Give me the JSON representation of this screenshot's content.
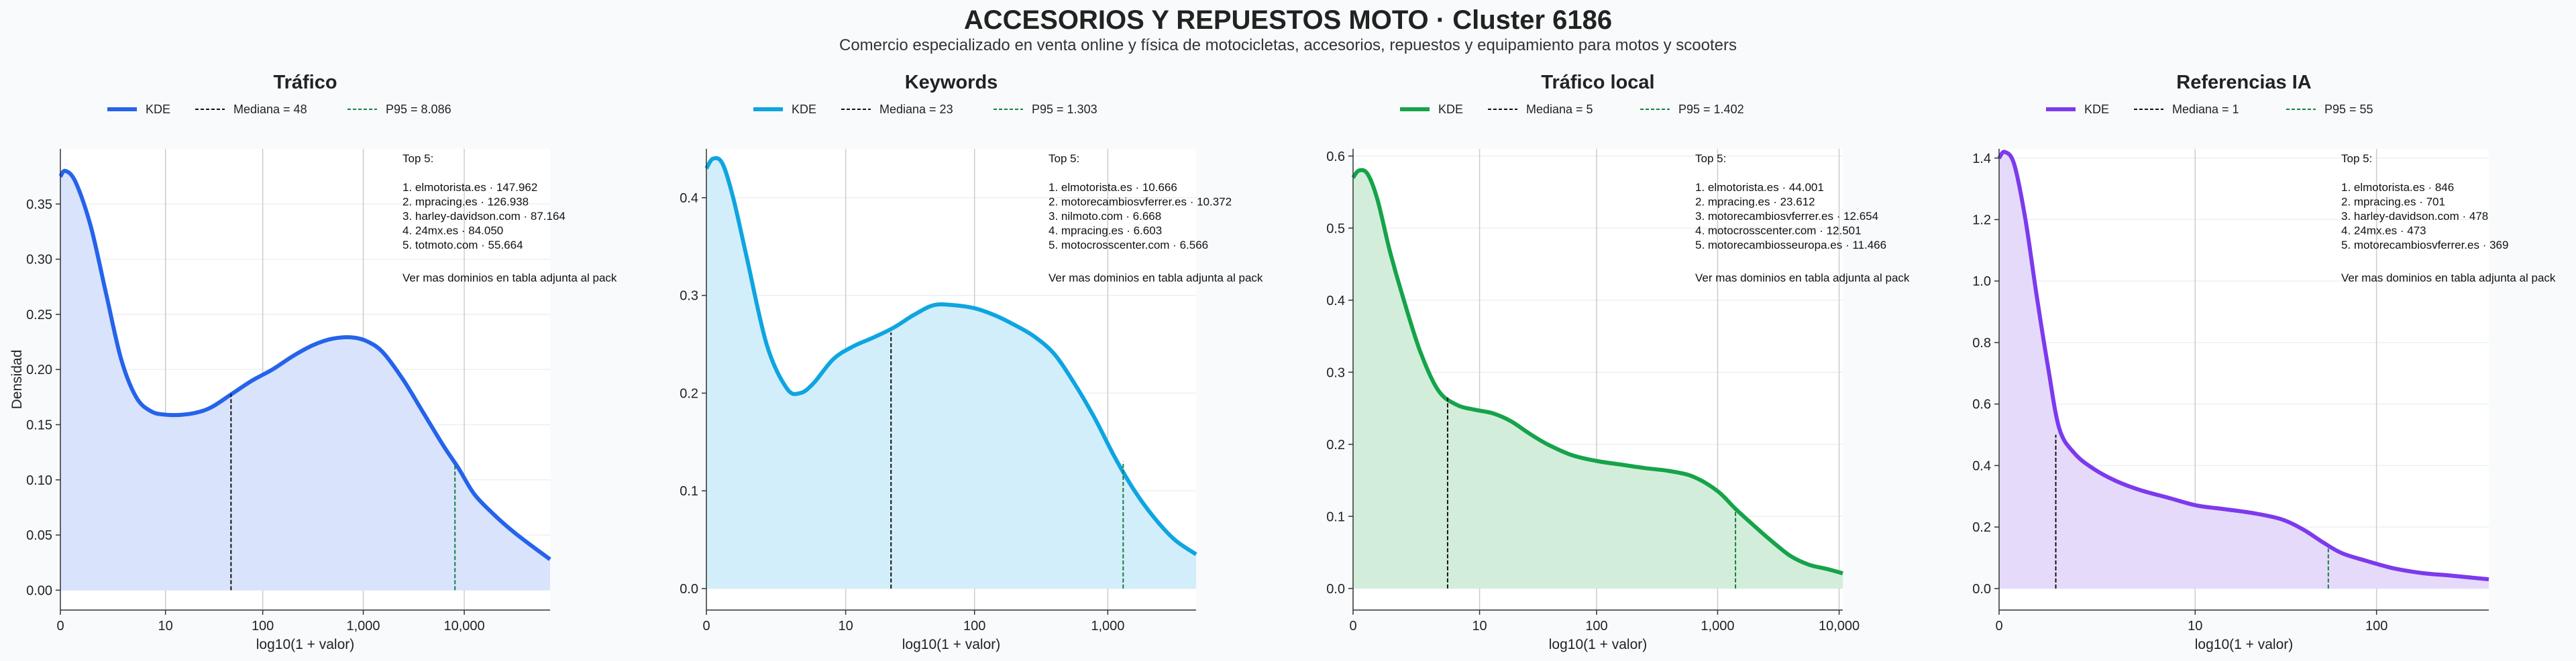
{
  "title": "ACCESORIOS Y REPUESTOS MOTO · Cluster 6186",
  "subtitle": "Comercio especializado en venta online y física de motocicletas, accesorios, repuestos y equipamiento para motos y scooters",
  "chart_data": [
    {
      "type": "area",
      "title": "Tráfico",
      "color": "#2563eb",
      "fill": "#d9e3fb",
      "xlabel": "log10(1 + valor)",
      "ylabel": "Densidad",
      "xlim": [
        0,
        4.85
      ],
      "ylim": [
        -0.018,
        0.4
      ],
      "x_ticks": [
        {
          "v": 0,
          "label": "0"
        },
        {
          "v": 1.041,
          "label": "10"
        },
        {
          "v": 2.004,
          "label": "100"
        },
        {
          "v": 3.0,
          "label": "1,000"
        },
        {
          "v": 4.0,
          "label": "10,000"
        }
      ],
      "y_ticks": [
        {
          "v": 0,
          "label": "0.00"
        },
        {
          "v": 0.05,
          "label": "0.05"
        },
        {
          "v": 0.1,
          "label": "0.10"
        },
        {
          "v": 0.15,
          "label": "0.15"
        },
        {
          "v": 0.2,
          "label": "0.20"
        },
        {
          "v": 0.25,
          "label": "0.25"
        },
        {
          "v": 0.3,
          "label": "0.30"
        },
        {
          "v": 0.35,
          "label": "0.35"
        }
      ],
      "kde": {
        "x": [
          0,
          0.05,
          0.15,
          0.3,
          0.45,
          0.6,
          0.75,
          0.9,
          1.05,
          1.2,
          1.35,
          1.5,
          1.7,
          1.9,
          2.1,
          2.3,
          2.5,
          2.7,
          2.9,
          3.05,
          3.2,
          3.4,
          3.6,
          3.8,
          3.94,
          4.1,
          4.3,
          4.5,
          4.7,
          4.85
        ],
        "y": [
          0.375,
          0.38,
          0.37,
          0.33,
          0.27,
          0.21,
          0.175,
          0.162,
          0.159,
          0.159,
          0.161,
          0.166,
          0.178,
          0.19,
          0.2,
          0.212,
          0.222,
          0.228,
          0.229,
          0.225,
          0.215,
          0.19,
          0.16,
          0.13,
          0.111,
          0.087,
          0.068,
          0.052,
          0.038,
          0.028
        ]
      },
      "legend": {
        "kde": "KDE",
        "median": "Mediana = 48",
        "p95": "P95 = 8.086"
      },
      "median": {
        "x": 1.69,
        "y": 0.178
      },
      "p95": {
        "x": 3.908,
        "y": 0.115
      },
      "top5_title": "Top 5:",
      "top5": [
        "1. elmotorista.es · 147.962",
        "2. mpracing.es · 126.938",
        "3. harley-davidson.com · 87.164",
        "4. 24mx.es · 84.050",
        "5. totmoto.com · 55.664"
      ],
      "note": "Ver mas dominios en tabla adjunta al pack"
    },
    {
      "type": "area",
      "title": "Keywords",
      "color": "#0ea5e0",
      "fill": "#d3eefb",
      "xlabel": "log10(1 + valor)",
      "ylabel": "",
      "xlim": [
        0,
        3.66
      ],
      "ylim": [
        -0.022,
        0.45
      ],
      "x_ticks": [
        {
          "v": 0,
          "label": "0"
        },
        {
          "v": 1.041,
          "label": "10"
        },
        {
          "v": 2.004,
          "label": "100"
        },
        {
          "v": 3.0,
          "label": "1,000"
        }
      ],
      "y_ticks": [
        {
          "v": 0,
          "label": "0.0"
        },
        {
          "v": 0.1,
          "label": "0.1"
        },
        {
          "v": 0.2,
          "label": "0.2"
        },
        {
          "v": 0.3,
          "label": "0.3"
        },
        {
          "v": 0.4,
          "label": "0.4"
        }
      ],
      "kde": {
        "x": [
          0,
          0.05,
          0.12,
          0.2,
          0.3,
          0.45,
          0.6,
          0.7,
          0.8,
          0.95,
          1.1,
          1.25,
          1.4,
          1.55,
          1.7,
          1.85,
          2.0,
          2.15,
          2.3,
          2.45,
          2.6,
          2.75,
          2.9,
          3.05,
          3.2,
          3.35,
          3.5,
          3.66
        ],
        "y": [
          0.43,
          0.44,
          0.435,
          0.4,
          0.34,
          0.25,
          0.205,
          0.2,
          0.21,
          0.235,
          0.248,
          0.257,
          0.267,
          0.28,
          0.29,
          0.29,
          0.287,
          0.28,
          0.27,
          0.258,
          0.24,
          0.21,
          0.175,
          0.135,
          0.1,
          0.072,
          0.05,
          0.035
        ]
      },
      "legend": {
        "kde": "KDE",
        "median": "Mediana = 23",
        "p95": "P95 = 1.303"
      },
      "median": {
        "x": 1.38,
        "y": 0.262
      },
      "p95": {
        "x": 3.115,
        "y": 0.13
      },
      "top5_title": "Top 5:",
      "top5": [
        "1. elmotorista.es · 10.666",
        "2. motorecambiosvferrer.es · 10.372",
        "3. nilmoto.com · 6.668",
        "4. mpracing.es · 6.603",
        "5. motocrosscenter.com · 6.566"
      ],
      "note": "Ver mas dominios en tabla adjunta al pack"
    },
    {
      "type": "area",
      "title": "Tráfico local",
      "color": "#16a34a",
      "fill": "#d2eedb",
      "xlabel": "log10(1 + valor)",
      "ylabel": "",
      "xlim": [
        0,
        4.03
      ],
      "ylim": [
        -0.03,
        0.61
      ],
      "x_ticks": [
        {
          "v": 0,
          "label": "0"
        },
        {
          "v": 1.041,
          "label": "10"
        },
        {
          "v": 2.004,
          "label": "100"
        },
        {
          "v": 3.0,
          "label": "1,000"
        },
        {
          "v": 4.0,
          "label": "10,000"
        }
      ],
      "y_ticks": [
        {
          "v": 0,
          "label": "0.0"
        },
        {
          "v": 0.1,
          "label": "0.1"
        },
        {
          "v": 0.2,
          "label": "0.2"
        },
        {
          "v": 0.3,
          "label": "0.3"
        },
        {
          "v": 0.4,
          "label": "0.4"
        },
        {
          "v": 0.5,
          "label": "0.5"
        },
        {
          "v": 0.6,
          "label": "0.6"
        }
      ],
      "kde": {
        "x": [
          0,
          0.05,
          0.12,
          0.2,
          0.3,
          0.4,
          0.55,
          0.7,
          0.85,
          1.0,
          1.15,
          1.3,
          1.45,
          1.6,
          1.8,
          2.0,
          2.2,
          2.4,
          2.6,
          2.8,
          3.0,
          3.15,
          3.3,
          3.45,
          3.6,
          3.75,
          3.9,
          4.03
        ],
        "y": [
          0.57,
          0.58,
          0.575,
          0.54,
          0.47,
          0.41,
          0.33,
          0.275,
          0.255,
          0.248,
          0.243,
          0.232,
          0.215,
          0.2,
          0.185,
          0.177,
          0.172,
          0.167,
          0.163,
          0.155,
          0.135,
          0.11,
          0.087,
          0.065,
          0.045,
          0.033,
          0.027,
          0.021
        ]
      },
      "legend": {
        "kde": "KDE",
        "median": "Mediana = 5",
        "p95": "P95 = 1.402"
      },
      "median": {
        "x": 0.778,
        "y": 0.265
      },
      "p95": {
        "x": 3.147,
        "y": 0.11
      },
      "top5_title": "Top 5:",
      "top5": [
        "1. elmotorista.es · 44.001",
        "2. mpracing.es · 23.612",
        "3. motorecambiosvferrer.es · 12.654",
        "4. motocrosscenter.com · 12.501",
        "5. motorecambiosseuropa.es · 11.466"
      ],
      "note": "Ver mas dominios en tabla adjunta al pack"
    },
    {
      "type": "area",
      "title": "Referencias IA",
      "color": "#7c3aed",
      "fill": "#e6dafb",
      "xlabel": "log10(1 + valor)",
      "ylabel": "",
      "xlim": [
        0,
        2.6
      ],
      "ylim": [
        -0.07,
        1.43
      ],
      "x_ticks": [
        {
          "v": 0,
          "label": "0"
        },
        {
          "v": 1.041,
          "label": "10"
        },
        {
          "v": 2.004,
          "label": "100"
        }
      ],
      "y_ticks": [
        {
          "v": 0,
          "label": "0.0"
        },
        {
          "v": 0.2,
          "label": "0.2"
        },
        {
          "v": 0.4,
          "label": "0.4"
        },
        {
          "v": 0.6,
          "label": "0.6"
        },
        {
          "v": 0.8,
          "label": "0.8"
        },
        {
          "v": 1.0,
          "label": "1.0"
        },
        {
          "v": 1.2,
          "label": "1.2"
        },
        {
          "v": 1.4,
          "label": "1.4"
        }
      ],
      "kde": {
        "x": [
          0,
          0.03,
          0.08,
          0.14,
          0.2,
          0.26,
          0.32,
          0.4,
          0.5,
          0.62,
          0.75,
          0.9,
          1.05,
          1.2,
          1.35,
          1.5,
          1.62,
          1.72,
          1.82,
          1.95,
          2.1,
          2.25,
          2.4,
          2.6
        ],
        "y": [
          1.4,
          1.42,
          1.38,
          1.2,
          0.95,
          0.72,
          0.52,
          0.44,
          0.39,
          0.35,
          0.32,
          0.295,
          0.27,
          0.258,
          0.245,
          0.225,
          0.19,
          0.15,
          0.115,
          0.09,
          0.065,
          0.05,
          0.042,
          0.03
        ]
      },
      "legend": {
        "kde": "KDE",
        "median": "Mediana = 1",
        "p95": "P95 = 55"
      },
      "median": {
        "x": 0.301,
        "y": 0.5
      },
      "p95": {
        "x": 1.748,
        "y": 0.13
      },
      "top5_title": "Top 5:",
      "top5": [
        "1. elmotorista.es · 846",
        "2. mpracing.es · 701",
        "3. harley-davidson.com · 478",
        "4. 24mx.es · 473",
        "5. motorecambiosvferrer.es · 369"
      ],
      "note": "Ver mas dominios en tabla adjunta al pack"
    }
  ]
}
